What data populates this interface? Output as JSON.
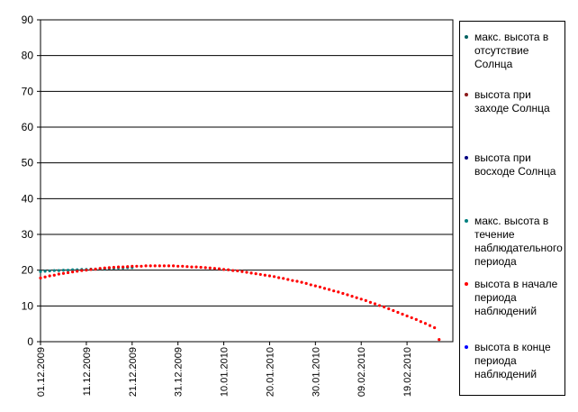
{
  "chart_data": {
    "type": "scatter",
    "title": "",
    "xlabel": "",
    "ylabel": "",
    "ylim": [
      0,
      90
    ],
    "yticks": [
      0,
      10,
      20,
      30,
      40,
      50,
      60,
      70,
      80,
      90
    ],
    "xlim": [
      "2009-12-01",
      "2010-03-01"
    ],
    "xticks": [
      "01.12.2009",
      "11.12.2009",
      "21.12.2009",
      "31.12.2009",
      "10.01.2010",
      "20.01.2010",
      "30.01.2010",
      "09.02.2010",
      "19.02.2010"
    ],
    "grid": "horizontal",
    "legend_position": "right",
    "series": [
      {
        "name": "макс. высота в отсутствие Солнца",
        "color": "#006060",
        "x": [],
        "y": []
      },
      {
        "name": "высота при заходе Солнца",
        "color": "#8b1a1a",
        "x": [],
        "y": []
      },
      {
        "name": "высота при восходе Солнца",
        "color": "#000080",
        "x": [],
        "y": []
      },
      {
        "name": "макс. высота в течение наблюдательного периода",
        "color": "#008080",
        "x": [
          "2009-12-01",
          "2009-12-02",
          "2009-12-03",
          "2009-12-04",
          "2009-12-05",
          "2009-12-06",
          "2009-12-07",
          "2009-12-08",
          "2009-12-09",
          "2009-12-10",
          "2009-12-11",
          "2009-12-12",
          "2009-12-13",
          "2009-12-14",
          "2009-12-15",
          "2009-12-16",
          "2009-12-17",
          "2009-12-18",
          "2009-12-19",
          "2009-12-20",
          "2009-12-21"
        ],
        "y": [
          19.6,
          19.7,
          19.8,
          19.9,
          19.9,
          20.0,
          20.0,
          20.1,
          20.1,
          20.2,
          20.2,
          20.3,
          20.3,
          20.4,
          20.4,
          20.5,
          20.5,
          20.6,
          20.6,
          20.7,
          20.7
        ]
      },
      {
        "name": "высота в начале периода наблюдений",
        "color": "#ff0000",
        "x": [
          "2009-12-01",
          "2009-12-02",
          "2009-12-03",
          "2009-12-04",
          "2009-12-05",
          "2009-12-06",
          "2009-12-07",
          "2009-12-08",
          "2009-12-09",
          "2009-12-10",
          "2009-12-11",
          "2009-12-12",
          "2009-12-13",
          "2009-12-14",
          "2009-12-15",
          "2009-12-16",
          "2009-12-17",
          "2009-12-18",
          "2009-12-19",
          "2009-12-20",
          "2009-12-21",
          "2009-12-22",
          "2009-12-23",
          "2009-12-24",
          "2009-12-25",
          "2009-12-26",
          "2009-12-27",
          "2009-12-28",
          "2009-12-29",
          "2009-12-30",
          "2009-12-31",
          "2010-01-01",
          "2010-01-02",
          "2010-01-03",
          "2010-01-04",
          "2010-01-05",
          "2010-01-06",
          "2010-01-07",
          "2010-01-08",
          "2010-01-09",
          "2010-01-10",
          "2010-01-11",
          "2010-01-12",
          "2010-01-13",
          "2010-01-14",
          "2010-01-15",
          "2010-01-16",
          "2010-01-17",
          "2010-01-18",
          "2010-01-19",
          "2010-01-20",
          "2010-01-21",
          "2010-01-22",
          "2010-01-23",
          "2010-01-24",
          "2010-01-25",
          "2010-01-26",
          "2010-01-27",
          "2010-01-28",
          "2010-01-29",
          "2010-01-30",
          "2010-01-31",
          "2010-02-01",
          "2010-02-02",
          "2010-02-03",
          "2010-02-04",
          "2010-02-05",
          "2010-02-06",
          "2010-02-07",
          "2010-02-08",
          "2010-02-09",
          "2010-02-10",
          "2010-02-11",
          "2010-02-12",
          "2010-02-13",
          "2010-02-14",
          "2010-02-15",
          "2010-02-16",
          "2010-02-17",
          "2010-02-18",
          "2010-02-19",
          "2010-02-20",
          "2010-02-21",
          "2010-02-22",
          "2010-02-23",
          "2010-02-24",
          "2010-02-25",
          "2010-02-26"
        ],
        "y": [
          17.8,
          18.1,
          18.4,
          18.6,
          18.9,
          19.1,
          19.3,
          19.5,
          19.7,
          19.9,
          20.0,
          20.2,
          20.3,
          20.5,
          20.6,
          20.7,
          20.8,
          20.9,
          20.9,
          21.0,
          21.1,
          21.1,
          21.1,
          21.2,
          21.2,
          21.2,
          21.2,
          21.2,
          21.2,
          21.2,
          21.1,
          21.1,
          21.0,
          20.9,
          20.9,
          20.8,
          20.7,
          20.6,
          20.5,
          20.4,
          20.2,
          20.1,
          19.9,
          19.8,
          19.6,
          19.4,
          19.2,
          19.0,
          18.8,
          18.6,
          18.4,
          18.2,
          17.9,
          17.7,
          17.4,
          17.1,
          16.9,
          16.6,
          16.3,
          15.9,
          15.6,
          15.3,
          14.9,
          14.6,
          14.2,
          13.9,
          13.5,
          13.1,
          12.7,
          12.3,
          11.9,
          11.5,
          11.0,
          10.6,
          10.1,
          9.7,
          9.2,
          8.7,
          8.2,
          7.7,
          7.2,
          6.7,
          6.2,
          5.6,
          5.1,
          4.5,
          3.9,
          0.6
        ]
      },
      {
        "name": "высота в конце периода наблюдений",
        "color": "#0000ff",
        "x": [],
        "y": []
      }
    ]
  },
  "legend": {
    "items": [
      {
        "label": "макс. высота в отсутствие Солнца",
        "color": "#006060"
      },
      {
        "label": "высота при заходе Солнца",
        "color": "#8b1a1a"
      },
      {
        "label": "высота при восходе Солнца",
        "color": "#000080"
      },
      {
        "label": "макс. высота в течение наблюдательного периода",
        "color": "#008080"
      },
      {
        "label": "высота в начале периода наблюдений",
        "color": "#ff0000"
      },
      {
        "label": "высота в конце периода наблюдений",
        "color": "#0000ff"
      }
    ]
  }
}
